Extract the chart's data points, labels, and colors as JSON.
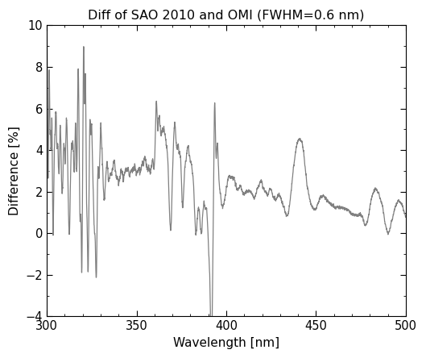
{
  "title": "Diff of SAO 2010 and OMI (FWHM=0.6 nm)",
  "xlabel": "Wavelength [nm]",
  "ylabel": "Difference [%]",
  "xlim": [
    300,
    500
  ],
  "ylim": [
    -4,
    10
  ],
  "yticks": [
    -4,
    -2,
    0,
    2,
    4,
    6,
    8,
    10
  ],
  "xticks": [
    300,
    350,
    400,
    450,
    500
  ],
  "line_color": "#808080",
  "line_width": 0.9,
  "bg_color": "#ffffff",
  "title_fontsize": 11.5,
  "label_fontsize": 11,
  "tick_fontsize": 10.5
}
